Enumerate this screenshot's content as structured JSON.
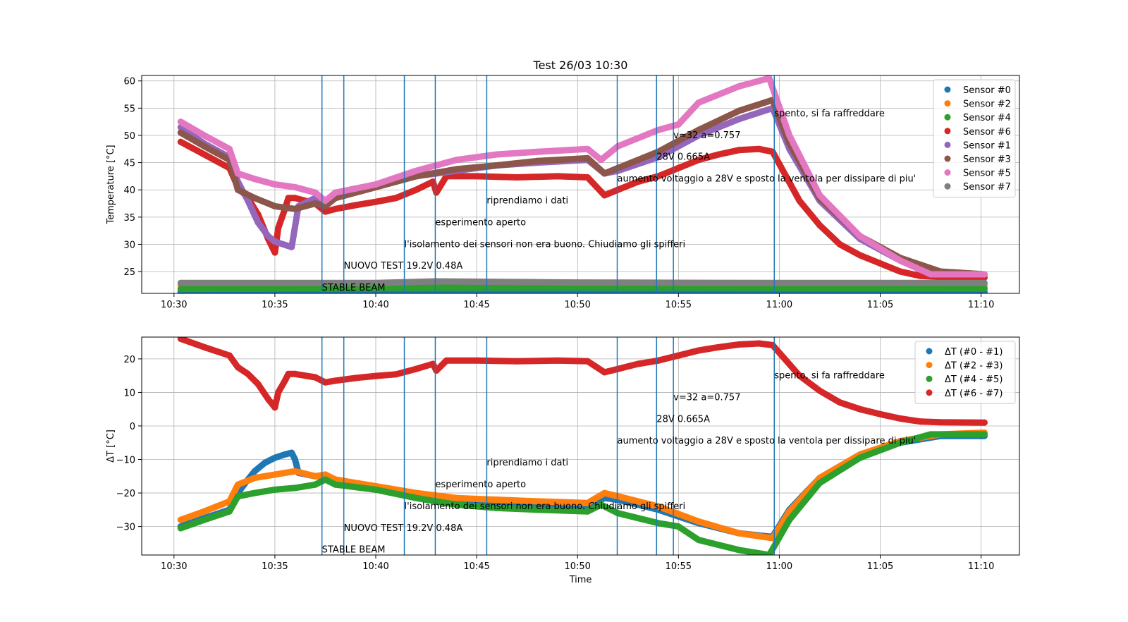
{
  "chart_data": [
    {
      "type": "scatter",
      "title": "Test 26/03 10:30",
      "xlabel": "",
      "ylabel": "Temperature [°C]",
      "xlim": [
        "10:28:24",
        "11:11:54"
      ],
      "ylim": [
        21,
        61
      ],
      "xticks": [
        "10:30",
        "10:35",
        "10:40",
        "10:45",
        "10:50",
        "10:55",
        "11:00",
        "11:05",
        "11:10"
      ],
      "yticks": [
        25,
        30,
        35,
        40,
        45,
        50,
        55,
        60
      ],
      "grid": true,
      "legend_position": "top-right",
      "vlines": [
        "10:37:20",
        "10:38:25",
        "10:41:25",
        "10:42:57",
        "10:45:30",
        "10:51:58",
        "10:53:55",
        "10:54:45",
        "10:59:45"
      ],
      "annotations": [
        {
          "text": "STABLE BEAM",
          "x": "10:37:20",
          "y": 21.5
        },
        {
          "text": "NUOVO TEST 19.2V 0.48A",
          "x": "10:38:25",
          "y": 25.5
        },
        {
          "text": "l'isolamento dei sensori non era buono. Chiudiamo gli spifferi",
          "x": "10:41:25",
          "y": 29.5
        },
        {
          "text": "esperimento aperto",
          "x": "10:42:57",
          "y": 33.5
        },
        {
          "text": "riprendiamo i dati",
          "x": "10:45:30",
          "y": 37.5
        },
        {
          "text": "aumento voltaggio a 28V e sposto la ventola per dissipare di piu'",
          "x": "10:51:58",
          "y": 41.5
        },
        {
          "text": "28V 0.665A",
          "x": "10:53:55",
          "y": 45.5
        },
        {
          "text": "v=32 a=0.757",
          "x": "10:54:45",
          "y": 49.5
        },
        {
          "text": "spento, si fa raffreddare",
          "x": "10:59:45",
          "y": 53.5
        }
      ],
      "series": [
        {
          "name": "Sensor #0",
          "color": "#1f77b4",
          "x": [
            "10:30:20",
            "10:40:00",
            "10:50:00",
            "11:00:00",
            "11:10:10"
          ],
          "y": [
            21.3,
            21.4,
            21.4,
            21.4,
            21.3
          ]
        },
        {
          "name": "Sensor #2",
          "color": "#ff7f0e",
          "x": [
            "10:30:20",
            "10:40:00",
            "10:50:00",
            "11:00:00",
            "11:10:10"
          ],
          "y": [
            22.5,
            22.6,
            22.7,
            22.6,
            22.5
          ]
        },
        {
          "name": "Sensor #4",
          "color": "#2ca02c",
          "x": [
            "10:30:20",
            "10:40:00",
            "10:50:00",
            "11:00:00",
            "11:10:10"
          ],
          "y": [
            21.8,
            22.0,
            22.1,
            22.0,
            21.9
          ]
        },
        {
          "name": "Sensor #6",
          "color": "#d62728",
          "x": [
            "10:30:20",
            "10:31:30",
            "10:32:45",
            "10:33:10",
            "10:33:40",
            "10:34:10",
            "10:34:40",
            "10:35:00",
            "10:35:10",
            "10:35:30",
            "10:35:40",
            "10:36:00",
            "10:37:00",
            "10:37:30",
            "10:38:00",
            "10:39:00",
            "10:40:00",
            "10:41:00",
            "10:42:00",
            "10:42:50",
            "10:43:00",
            "10:43:30",
            "10:45:00",
            "10:47:00",
            "10:49:00",
            "10:50:30",
            "10:51:20",
            "10:52:00",
            "10:53:00",
            "10:54:00",
            "10:55:00",
            "10:56:00",
            "10:57:00",
            "10:58:00",
            "10:59:00",
            "10:59:40",
            "11:01:00",
            "11:02:00",
            "11:03:00",
            "11:04:00",
            "11:05:00",
            "11:06:00",
            "11:07:00",
            "11:08:00",
            "11:10:10"
          ],
          "y": [
            48.8,
            46.5,
            44.0,
            40.5,
            38.5,
            35.5,
            31.0,
            28.5,
            33.0,
            36.5,
            38.5,
            38.5,
            37.5,
            36.0,
            36.5,
            37.2,
            37.8,
            38.5,
            40.0,
            41.5,
            39.5,
            42.5,
            42.5,
            42.3,
            42.5,
            42.3,
            39.0,
            40.0,
            41.5,
            42.5,
            44.0,
            45.5,
            46.5,
            47.3,
            47.5,
            47.0,
            38.0,
            33.5,
            30.0,
            28.0,
            26.5,
            25.0,
            24.2,
            24.0,
            23.9
          ]
        },
        {
          "name": "Sensor #1",
          "color": "#9467bd",
          "x": [
            "10:30:20",
            "10:31:30",
            "10:32:45",
            "10:33:10",
            "10:33:40",
            "10:34:10",
            "10:34:40",
            "10:35:00",
            "10:35:50",
            "10:36:10",
            "10:37:00",
            "10:37:30",
            "10:38:00",
            "10:40:00",
            "10:42:00",
            "10:44:00",
            "10:46:00",
            "10:48:00",
            "10:50:30",
            "10:51:20",
            "10:52:00",
            "10:54:00",
            "10:56:00",
            "10:58:00",
            "10:59:40",
            "11:00:30",
            "11:02:00",
            "11:04:00",
            "11:06:00",
            "11:08:00",
            "11:10:10"
          ],
          "y": [
            51.5,
            48.5,
            46.0,
            41.5,
            38.0,
            34.0,
            31.5,
            30.5,
            29.5,
            37.0,
            38.5,
            37.5,
            38.5,
            40.5,
            42.5,
            43.5,
            44.5,
            45.0,
            45.5,
            43.0,
            43.5,
            46.0,
            50.0,
            53.0,
            55.0,
            47.5,
            38.0,
            31.0,
            27.0,
            25.0,
            24.5
          ]
        },
        {
          "name": "Sensor #3",
          "color": "#8c564b",
          "x": [
            "10:30:20",
            "10:31:30",
            "10:32:45",
            "10:33:10",
            "10:34:00",
            "10:35:00",
            "10:36:00",
            "10:37:00",
            "10:37:30",
            "10:38:00",
            "10:40:00",
            "10:42:00",
            "10:44:00",
            "10:46:00",
            "10:48:00",
            "10:50:30",
            "10:51:20",
            "10:52:00",
            "10:54:00",
            "10:56:00",
            "10:58:00",
            "10:59:40",
            "11:00:30",
            "11:02:00",
            "11:04:00",
            "11:06:00",
            "11:08:00",
            "11:10:10"
          ],
          "y": [
            50.5,
            48.0,
            45.5,
            40.0,
            38.5,
            37.0,
            36.5,
            37.5,
            37.0,
            38.5,
            40.5,
            42.5,
            43.8,
            44.5,
            45.3,
            45.8,
            43.0,
            44.0,
            47.0,
            51.0,
            54.5,
            56.5,
            48.5,
            38.5,
            31.5,
            27.5,
            25.0,
            24.5
          ]
        },
        {
          "name": "Sensor #5",
          "color": "#e377c2",
          "x": [
            "10:30:20",
            "10:31:30",
            "10:32:45",
            "10:33:10",
            "10:34:00",
            "10:35:00",
            "10:36:00",
            "10:37:00",
            "10:37:30",
            "10:38:00",
            "10:40:00",
            "10:42:00",
            "10:44:00",
            "10:46:00",
            "10:48:00",
            "10:50:30",
            "10:51:10",
            "10:52:00",
            "10:54:00",
            "10:55:00",
            "10:56:00",
            "10:58:00",
            "10:59:30",
            "11:00:30",
            "11:02:00",
            "11:04:00",
            "11:06:00",
            "11:07:30",
            "11:10:10"
          ],
          "y": [
            52.5,
            50.0,
            47.5,
            43.0,
            42.0,
            41.0,
            40.5,
            39.5,
            38.0,
            39.5,
            41.0,
            43.5,
            45.5,
            46.5,
            47.0,
            47.5,
            45.5,
            48.0,
            51.0,
            52.0,
            56.0,
            59.0,
            60.5,
            50.0,
            39.0,
            31.5,
            27.0,
            24.5,
            24.5
          ]
        },
        {
          "name": "Sensor #7",
          "color": "#7f7f7f",
          "x": [
            "10:30:20",
            "10:40:00",
            "10:43:00",
            "10:50:00",
            "11:00:00",
            "11:10:10"
          ],
          "y": [
            22.9,
            22.9,
            23.2,
            23.0,
            22.9,
            22.9
          ]
        }
      ]
    },
    {
      "type": "scatter",
      "title": "",
      "xlabel": "Time",
      "ylabel": "ΔT [°C]",
      "xlim": [
        "10:28:24",
        "11:11:54"
      ],
      "ylim": [
        -38.5,
        26.5
      ],
      "xticks": [
        "10:30",
        "10:35",
        "10:40",
        "10:45",
        "10:50",
        "10:55",
        "11:00",
        "11:05",
        "11:10"
      ],
      "yticks": [
        -30,
        -20,
        -10,
        0,
        10,
        20
      ],
      "grid": true,
      "legend_position": "top-right",
      "vlines": [
        "10:37:20",
        "10:38:25",
        "10:41:25",
        "10:42:57",
        "10:45:30",
        "10:51:58",
        "10:53:55",
        "10:54:45",
        "10:59:45"
      ],
      "annotations": [
        {
          "text": "STABLE BEAM",
          "x": "10:37:20",
          "y": -37.8
        },
        {
          "text": "NUOVO TEST 19.2V 0.48A",
          "x": "10:38:25",
          "y": -31.3
        },
        {
          "text": "l'isolamento dei sensori non era buono. Chiudiamo gli spifferi",
          "x": "10:41:25",
          "y": -24.8
        },
        {
          "text": "esperimento aperto",
          "x": "10:42:57",
          "y": -18.3
        },
        {
          "text": "riprendiamo i dati",
          "x": "10:45:30",
          "y": -11.8
        },
        {
          "text": "aumento voltaggio a 28V e sposto la ventola per dissipare di piu'",
          "x": "10:51:58",
          "y": -5.3
        },
        {
          "text": "28V 0.665A",
          "x": "10:53:55",
          "y": 1.2
        },
        {
          "text": "v=32 a=0.757",
          "x": "10:54:45",
          "y": 7.7
        },
        {
          "text": "spento, si fa raffreddare",
          "x": "10:59:45",
          "y": 14.2
        }
      ],
      "series": [
        {
          "name": "ΔT (#0 - #1)",
          "color": "#1f77b4",
          "x": [
            "10:30:20",
            "10:31:30",
            "10:32:45",
            "10:33:10",
            "10:33:40",
            "10:34:00",
            "10:34:30",
            "10:35:00",
            "10:35:30",
            "10:35:50",
            "10:36:00",
            "10:36:10",
            "10:37:00",
            "10:37:30",
            "10:38:00",
            "10:40:00",
            "10:42:00",
            "10:44:00",
            "10:46:00",
            "10:48:00",
            "10:50:30",
            "10:51:20",
            "10:52:00",
            "10:54:00",
            "10:56:00",
            "10:58:00",
            "10:59:30",
            "10:59:40",
            "11:00:30",
            "11:02:00",
            "11:04:00",
            "11:06:00",
            "11:08:00",
            "11:10:10"
          ],
          "y": [
            -30.0,
            -27.5,
            -25.0,
            -20.0,
            -16.0,
            -13.5,
            -11.0,
            -9.5,
            -8.5,
            -8.0,
            -10.0,
            -14.0,
            -15.0,
            -15.0,
            -17.0,
            -19.0,
            -21.0,
            -22.0,
            -23.0,
            -23.5,
            -24.0,
            -21.5,
            -22.0,
            -25.0,
            -29.0,
            -32.0,
            -33.0,
            -33.0,
            -25.0,
            -15.5,
            -9.0,
            -5.0,
            -3.0,
            -3.0
          ]
        },
        {
          "name": "ΔT (#2 - #3)",
          "color": "#ff7f0e",
          "x": [
            "10:30:20",
            "10:31:30",
            "10:32:45",
            "10:33:10",
            "10:34:00",
            "10:35:00",
            "10:36:00",
            "10:37:00",
            "10:37:30",
            "10:38:00",
            "10:40:00",
            "10:42:00",
            "10:44:00",
            "10:46:00",
            "10:48:00",
            "10:50:30",
            "10:51:20",
            "10:52:00",
            "10:54:00",
            "10:56:00",
            "10:58:00",
            "10:59:40",
            "11:00:30",
            "11:02:00",
            "11:04:00",
            "11:06:00",
            "11:08:00",
            "11:10:10"
          ],
          "y": [
            -28.0,
            -25.5,
            -22.5,
            -17.5,
            -15.5,
            -14.5,
            -13.5,
            -15.0,
            -14.5,
            -16.0,
            -18.0,
            -20.0,
            -21.5,
            -22.0,
            -22.5,
            -23.0,
            -20.0,
            -21.0,
            -24.0,
            -28.5,
            -32.0,
            -33.5,
            -25.5,
            -15.5,
            -8.5,
            -4.5,
            -2.5,
            -2.0
          ]
        },
        {
          "name": "ΔT (#4 - #5)",
          "color": "#2ca02c",
          "x": [
            "10:30:20",
            "10:31:30",
            "10:32:45",
            "10:33:10",
            "10:34:00",
            "10:35:00",
            "10:36:00",
            "10:37:00",
            "10:37:30",
            "10:38:00",
            "10:40:00",
            "10:42:00",
            "10:44:00",
            "10:46:00",
            "10:48:00",
            "10:50:30",
            "10:51:10",
            "10:52:00",
            "10:54:00",
            "10:55:00",
            "10:56:00",
            "10:58:00",
            "10:59:30",
            "11:00:30",
            "11:02:00",
            "11:04:00",
            "11:06:00",
            "11:07:30",
            "11:10:10"
          ],
          "y": [
            -30.5,
            -28.0,
            -25.5,
            -21.0,
            -20.0,
            -19.0,
            -18.5,
            -17.5,
            -16.0,
            -17.5,
            -19.0,
            -21.5,
            -23.5,
            -24.5,
            -25.0,
            -25.5,
            -23.5,
            -26.0,
            -29.0,
            -30.0,
            -34.0,
            -37.0,
            -38.5,
            -28.0,
            -17.0,
            -9.5,
            -5.0,
            -2.5,
            -2.5
          ]
        },
        {
          "name": "ΔT (#6 - #7)",
          "color": "#d62728",
          "x": [
            "10:30:20",
            "10:31:30",
            "10:32:45",
            "10:33:10",
            "10:33:40",
            "10:34:10",
            "10:34:40",
            "10:35:00",
            "10:35:10",
            "10:35:30",
            "10:35:40",
            "10:36:00",
            "10:37:00",
            "10:37:30",
            "10:38:00",
            "10:39:00",
            "10:40:00",
            "10:41:00",
            "10:42:00",
            "10:42:50",
            "10:43:00",
            "10:43:30",
            "10:45:00",
            "10:47:00",
            "10:49:00",
            "10:50:30",
            "10:51:20",
            "10:52:00",
            "10:53:00",
            "10:54:00",
            "10:55:00",
            "10:56:00",
            "10:57:00",
            "10:58:00",
            "10:59:00",
            "10:59:40",
            "11:01:00",
            "11:02:00",
            "11:03:00",
            "11:04:00",
            "11:05:00",
            "11:06:00",
            "11:07:00",
            "11:08:00",
            "11:10:10"
          ],
          "y": [
            26.0,
            23.5,
            21.0,
            17.5,
            15.5,
            12.5,
            8.0,
            5.5,
            10.0,
            13.5,
            15.5,
            15.5,
            14.5,
            13.0,
            13.5,
            14.3,
            14.9,
            15.4,
            17.0,
            18.5,
            16.5,
            19.5,
            19.5,
            19.3,
            19.5,
            19.3,
            16.0,
            17.0,
            18.5,
            19.5,
            21.0,
            22.5,
            23.5,
            24.3,
            24.6,
            24.1,
            15.0,
            10.5,
            7.0,
            5.0,
            3.5,
            2.2,
            1.3,
            1.1,
            1.0
          ]
        }
      ]
    }
  ]
}
